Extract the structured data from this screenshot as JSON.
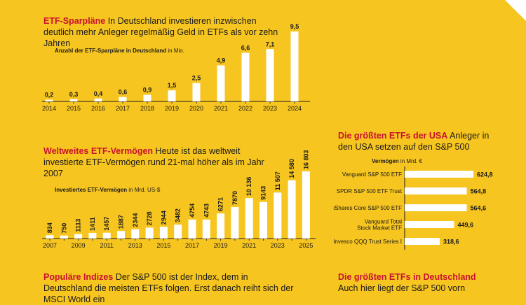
{
  "section1": {
    "title_red": "ETF-Sparpläne",
    "title_body": " In Deutschland investieren inzwischen deutlich mehr Anleger regelmäßig Geld in ETFs als vor zehn Jahren"
  },
  "section2": {
    "title_red": "Weltweites ETF-Vermögen",
    "title_body": " Heute ist das weltweit investierte ETF-Vermögen rund 21-mal höher als im Jahr 2007"
  },
  "section3": {
    "title_red": "Die größten ETFs der USA",
    "title_body": " Anleger in den USA setzen auf den S&P 500"
  },
  "section4": {
    "title_red": "Populäre Indizes",
    "title_body": " Der S&P 500 ist der Index, dem in Deutschland die meisten ETFs folgen. Erst danach reiht sich der MSCI World ein"
  },
  "section5": {
    "title_red": "Die größten ETFs in Deutschland",
    "title_body": "Auch hier liegt der S&P 500 vorn"
  },
  "chart_data": [
    {
      "type": "bar",
      "ylabel": "Anzahl der ETF-Sparpläne in Deutschland",
      "ylabel_unit": " in Mio.",
      "categories": [
        "2014",
        "2015",
        "2016",
        "2017",
        "2018",
        "2019",
        "2020",
        "2021",
        "2022",
        "2023",
        "2024"
      ],
      "values": [
        0.2,
        0.3,
        0.4,
        0.6,
        0.9,
        1.5,
        2.5,
        4.9,
        6.6,
        7.1,
        9.5
      ],
      "value_labels": [
        "0,2",
        "0,3",
        "0,4",
        "0,6",
        "0,9",
        "1,5",
        "2,5",
        "4,9",
        "6,6",
        "7,1",
        "9,5"
      ],
      "ylim": [
        0,
        9.5
      ]
    },
    {
      "type": "bar",
      "ylabel": "Investiertes ETF-Vermögen",
      "ylabel_unit": " in Mrd. US-$",
      "categories": [
        "2007",
        "2008",
        "2009",
        "2010",
        "2011",
        "2012",
        "2013",
        "2014",
        "2015",
        "2016",
        "2017",
        "2018",
        "2019",
        "2020",
        "2021",
        "2022",
        "2023",
        "2024",
        "2025"
      ],
      "tick_labels": [
        "2007",
        "2009",
        "2011",
        "2013",
        "2015",
        "2017",
        "2019",
        "2021",
        "2023",
        "2025"
      ],
      "values": [
        834,
        750,
        1113,
        1411,
        1457,
        1887,
        2344,
        2728,
        2944,
        3482,
        4754,
        4743,
        6271,
        7870,
        10136,
        9143,
        11507,
        14580,
        16803
      ],
      "value_labels": [
        "834",
        "750",
        "1113",
        "1411",
        "1457",
        "1887",
        "2344",
        "2728",
        "2944",
        "3482",
        "4754",
        "4743",
        "6271",
        "7870",
        "10 136",
        "9143",
        "11 507",
        "14 580",
        "16 803"
      ],
      "ylim": [
        0,
        16803
      ]
    },
    {
      "type": "bar",
      "orientation": "horizontal",
      "ylabel": "Vermögen",
      "ylabel_unit": " in Mrd. €",
      "categories": [
        [
          "Vanguard S&P 500 ETF"
        ],
        [
          "SPDR S&P 500 ETF Trust"
        ],
        [
          "iShares Core S&P 500 ETF"
        ],
        [
          "Vanguard Total",
          "Stock Market ETF"
        ],
        [
          "Invesco QQQ Trust Series I"
        ]
      ],
      "values": [
        624.8,
        564.8,
        564.6,
        449.6,
        318.6
      ],
      "value_labels": [
        "624,8",
        "564,8",
        "564,6",
        "449,6",
        "318,6"
      ],
      "xlim": [
        0,
        624.8
      ]
    }
  ]
}
